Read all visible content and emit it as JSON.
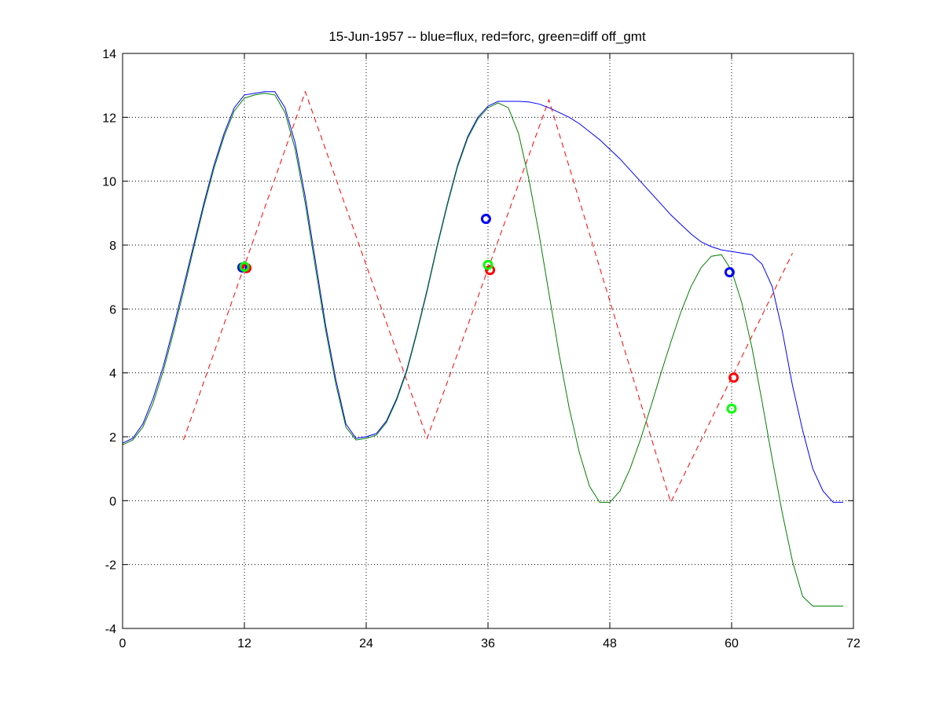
{
  "chart_data": {
    "type": "line",
    "title": "15-Jun-1957 -- blue=flux, red=forc, green=diff off_gmt",
    "xlabel": "",
    "ylabel": "",
    "xlim": [
      0,
      72
    ],
    "ylim": [
      -4,
      14
    ],
    "xticks": [
      0,
      12,
      24,
      36,
      48,
      60,
      72
    ],
    "yticks": [
      -4,
      -2,
      0,
      2,
      4,
      6,
      8,
      10,
      12,
      14
    ],
    "grid": true,
    "series": [
      {
        "color": "#0000ff",
        "style": "solid",
        "x": [
          0,
          1,
          2,
          3,
          4,
          5,
          6,
          7,
          8,
          9,
          10,
          11,
          12,
          13,
          14,
          15,
          16,
          17,
          18,
          19,
          20,
          21,
          22,
          23,
          24,
          25,
          26,
          27,
          28,
          29,
          30,
          31,
          32,
          33,
          34,
          35,
          36,
          37,
          38,
          39,
          40,
          41,
          42,
          43,
          44,
          45,
          46,
          47,
          48,
          49,
          50,
          51,
          52,
          53,
          54,
          55,
          56,
          57,
          58,
          59,
          60,
          61,
          62,
          63,
          64,
          65,
          66,
          67,
          68,
          69,
          70,
          71
        ],
        "y": [
          1.8,
          1.95,
          2.4,
          3.2,
          4.2,
          5.4,
          6.7,
          8.0,
          9.3,
          10.5,
          11.5,
          12.3,
          12.7,
          12.75,
          12.8,
          12.8,
          12.3,
          11.2,
          9.5,
          7.5,
          5.5,
          3.8,
          2.4,
          1.95,
          2.0,
          2.1,
          2.5,
          3.2,
          4.1,
          5.3,
          6.6,
          8.0,
          9.3,
          10.5,
          11.4,
          12.0,
          12.35,
          12.5,
          12.5,
          12.5,
          12.48,
          12.42,
          12.3,
          12.15,
          12.0,
          11.8,
          11.55,
          11.3,
          11.0,
          10.7,
          10.35,
          10.0,
          9.65,
          9.3,
          8.95,
          8.65,
          8.35,
          8.1,
          7.95,
          7.85,
          7.8,
          7.75,
          7.7,
          7.4,
          6.7,
          5.3,
          3.6,
          2.2,
          1.0,
          0.3,
          -0.05,
          -0.05
        ]
      },
      {
        "color": "#ff0000",
        "style": "dashed",
        "x": [
          6,
          18,
          30,
          42,
          54,
          66
        ],
        "y": [
          1.9,
          12.8,
          1.95,
          12.55,
          -0.05,
          7.75
        ]
      },
      {
        "color": "#008000",
        "style": "solid",
        "x": [
          0,
          1,
          2,
          3,
          4,
          5,
          6,
          7,
          8,
          9,
          10,
          11,
          12,
          13,
          14,
          15,
          16,
          17,
          18,
          19,
          20,
          21,
          22,
          23,
          24,
          25,
          26,
          27,
          28,
          29,
          30,
          31,
          32,
          33,
          34,
          35,
          36,
          37,
          38,
          39,
          40,
          41,
          42,
          43,
          44,
          45,
          46,
          47,
          48,
          49,
          50,
          51,
          52,
          53,
          54,
          55,
          56,
          57,
          58,
          59,
          60,
          61,
          62,
          63,
          64,
          65,
          66,
          67,
          68,
          69,
          70,
          71
        ],
        "y": [
          1.75,
          1.9,
          2.3,
          3.05,
          4.05,
          5.25,
          6.55,
          7.9,
          9.2,
          10.4,
          11.4,
          12.2,
          12.6,
          12.7,
          12.75,
          12.7,
          12.15,
          11.0,
          9.3,
          7.3,
          5.35,
          3.65,
          2.3,
          1.9,
          1.95,
          2.05,
          2.45,
          3.15,
          4.05,
          5.25,
          6.55,
          7.95,
          9.25,
          10.45,
          11.35,
          11.95,
          12.3,
          12.45,
          12.3,
          11.5,
          10.1,
          8.4,
          6.5,
          4.6,
          2.9,
          1.5,
          0.45,
          -0.05,
          -0.05,
          0.3,
          1.0,
          1.9,
          2.9,
          3.95,
          4.95,
          5.9,
          6.7,
          7.3,
          7.65,
          7.7,
          7.2,
          6.2,
          4.8,
          3.1,
          1.3,
          -0.4,
          -1.9,
          -3.0,
          -3.3,
          -3.3,
          -3.3,
          -3.3
        ]
      }
    ],
    "markers": [
      {
        "x": 11.8,
        "y": 7.3,
        "color": "#0000ff"
      },
      {
        "x": 12.2,
        "y": 7.28,
        "color": "#ff0000"
      },
      {
        "x": 12.0,
        "y": 7.32,
        "color": "#00ff00"
      },
      {
        "x": 35.8,
        "y": 8.82,
        "color": "#0000ff"
      },
      {
        "x": 36.2,
        "y": 7.22,
        "color": "#ff0000"
      },
      {
        "x": 36.0,
        "y": 7.38,
        "color": "#00ff00"
      },
      {
        "x": 59.8,
        "y": 7.15,
        "color": "#0000ff"
      },
      {
        "x": 60.2,
        "y": 3.85,
        "color": "#ff0000"
      },
      {
        "x": 60.0,
        "y": 2.88,
        "color": "#00ff00"
      }
    ]
  }
}
